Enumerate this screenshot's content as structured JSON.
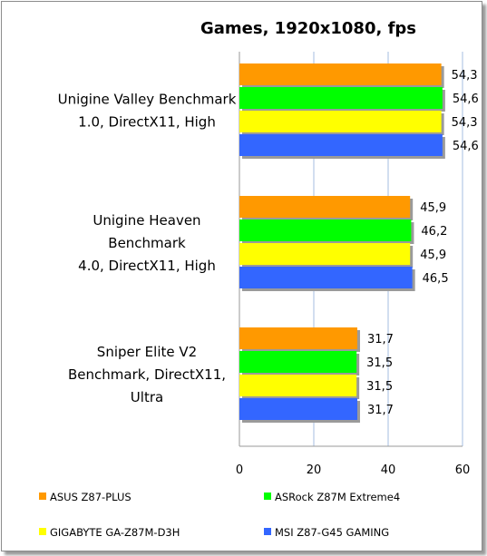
{
  "chart_data": {
    "type": "bar",
    "orientation": "horizontal",
    "title": "Games, 1920x1080, fps",
    "xlim": [
      0,
      60
    ],
    "xticks": [
      "0",
      "20",
      "40",
      "60"
    ],
    "grid": true,
    "legend_position": "bottom",
    "categories": [
      [
        "Unigine Valley Benchmark",
        "1.0, DirectX11, High"
      ],
      [
        "Unigine Heaven",
        "Benchmark",
        "4.0, DirectX11, High"
      ],
      [
        "Sniper Elite V2",
        "Benchmark, DirectX11,",
        "Ultra"
      ]
    ],
    "series": [
      {
        "name": "ASUS Z87-PLUS",
        "color": "#ff9900",
        "values": [
          54.3,
          45.9,
          31.7
        ],
        "labels": [
          "54,3",
          "45,9",
          "31,7"
        ]
      },
      {
        "name": "ASRock Z87M Extreme4",
        "color": "#00ff00",
        "values": [
          54.6,
          46.2,
          31.5
        ],
        "labels": [
          "54,6",
          "46,2",
          "31,5"
        ]
      },
      {
        "name": "GIGABYTE GA-Z87M-D3H",
        "color": "#ffff00",
        "values": [
          54.3,
          45.9,
          31.5
        ],
        "labels": [
          "54,3",
          "45,9",
          "31,5"
        ]
      },
      {
        "name": "MSI Z87-G45 GAMING",
        "color": "#3366ff",
        "values": [
          54.6,
          46.5,
          31.7
        ],
        "labels": [
          "54,6",
          "46,5",
          "31,7"
        ]
      }
    ]
  }
}
